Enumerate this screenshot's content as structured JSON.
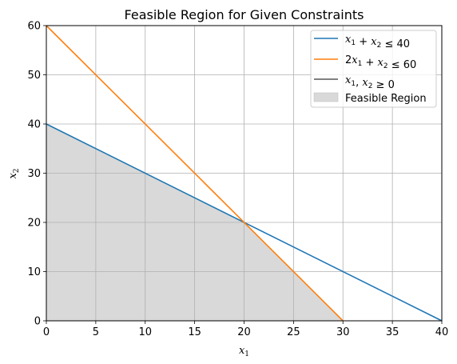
{
  "chart_data": {
    "type": "line",
    "title": "Feasible Region for Given Constraints",
    "xlabel": "x1",
    "ylabel": "x2",
    "xlim": [
      0,
      40
    ],
    "ylim": [
      0,
      60
    ],
    "xticks": [
      0,
      5,
      10,
      15,
      20,
      25,
      30,
      35,
      40
    ],
    "yticks": [
      0,
      10,
      20,
      30,
      40,
      50,
      60
    ],
    "grid": true,
    "legend_position": "top-right",
    "series": [
      {
        "name": "x1 + x2 ≤ 40",
        "color": "#1f77b4",
        "x": [
          0,
          40
        ],
        "y": [
          40,
          0
        ]
      },
      {
        "name": "2x1 + x2 ≤ 60",
        "color": "#ff7f0e",
        "x": [
          0,
          30
        ],
        "y": [
          60,
          0
        ]
      },
      {
        "name": "x1, x2 ≥ 0",
        "color": "#000000",
        "x": [],
        "y": []
      }
    ],
    "fill": {
      "name": "Feasible Region",
      "color": "#d9d9d9",
      "vertices": [
        [
          0,
          0
        ],
        [
          0,
          40
        ],
        [
          20,
          20
        ],
        [
          30,
          0
        ]
      ]
    }
  }
}
